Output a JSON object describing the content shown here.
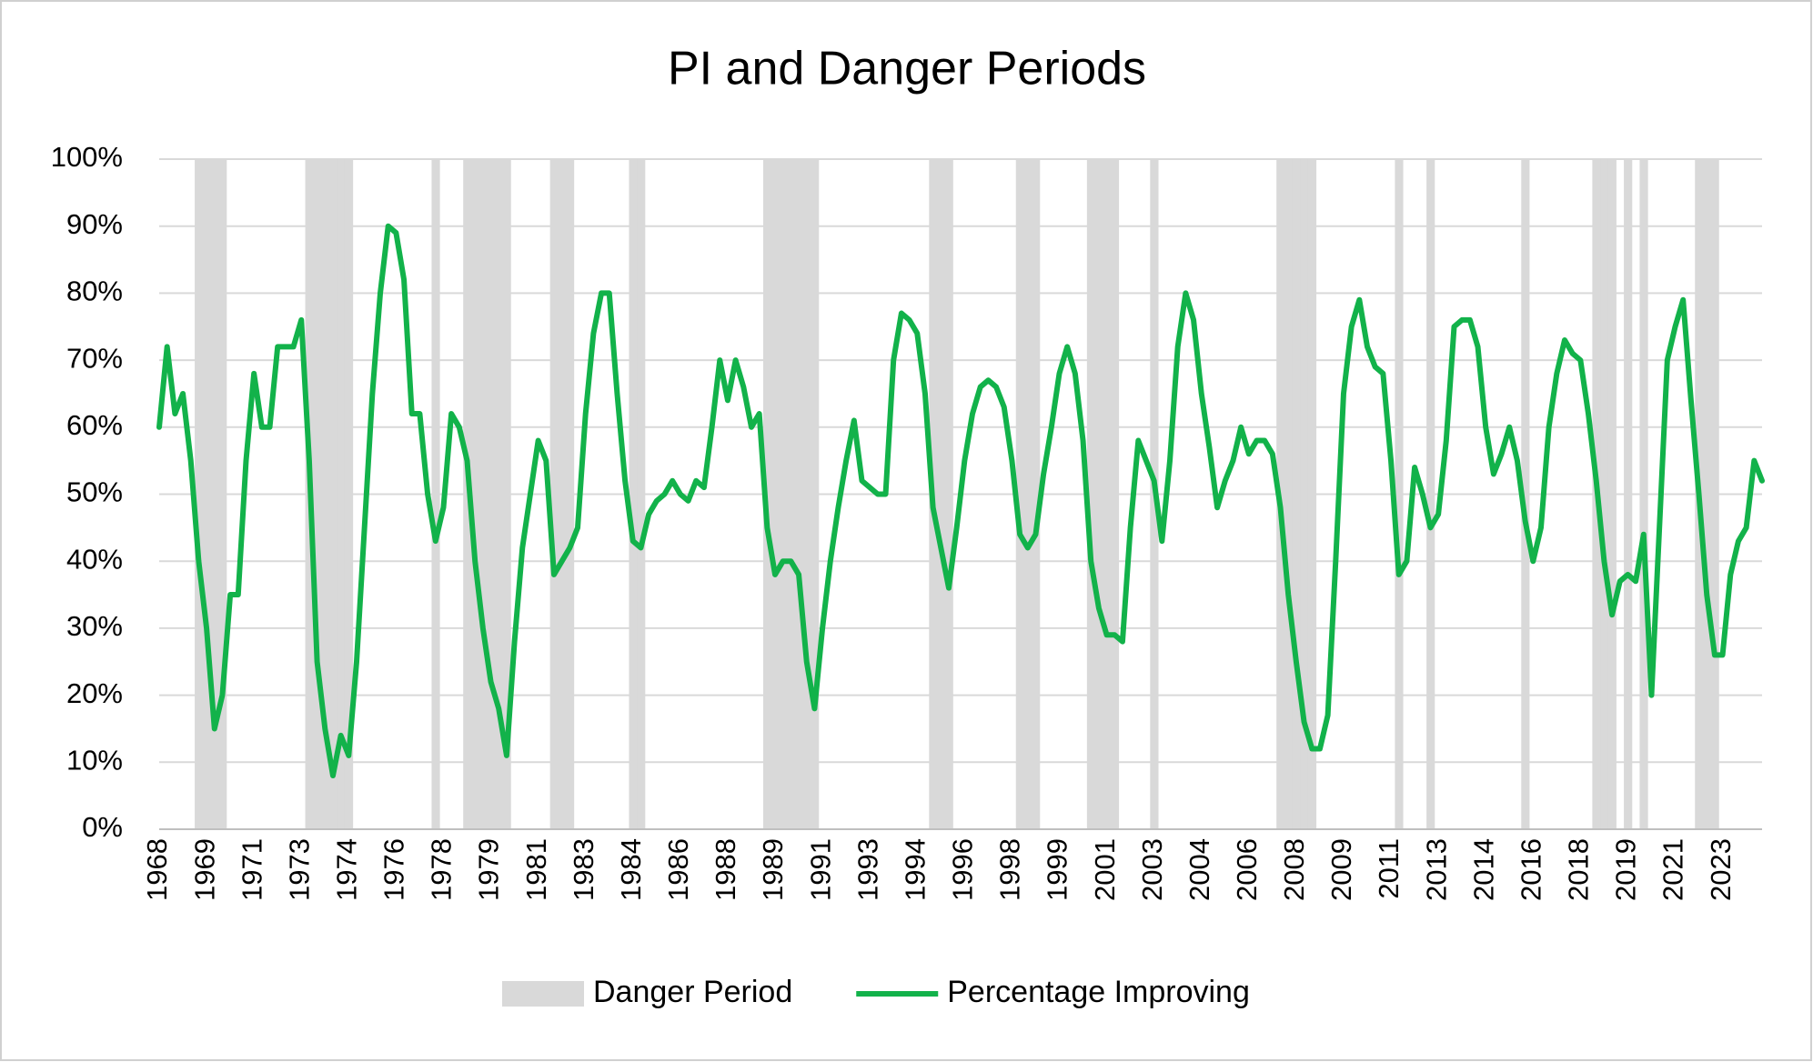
{
  "chart_data": {
    "type": "line",
    "title": "PI and Danger Periods",
    "categories": [
      "1968",
      null,
      null,
      null,
      null,
      null,
      "1969",
      null,
      null,
      null,
      null,
      null,
      "1971",
      null,
      null,
      null,
      null,
      null,
      "1973",
      null,
      null,
      null,
      null,
      null,
      "1974",
      null,
      null,
      null,
      null,
      null,
      "1976",
      null,
      null,
      null,
      null,
      null,
      "1978",
      null,
      null,
      null,
      null,
      null,
      "1979",
      null,
      null,
      null,
      null,
      null,
      "1981",
      null,
      null,
      null,
      null,
      null,
      "1983",
      null,
      null,
      null,
      null,
      null,
      "1984",
      null,
      null,
      null,
      null,
      null,
      "1986",
      null,
      null,
      null,
      null,
      null,
      "1988",
      null,
      null,
      null,
      null,
      null,
      "1989",
      null,
      null,
      null,
      null,
      null,
      "1991",
      null,
      null,
      null,
      null,
      null,
      "1993",
      null,
      null,
      null,
      null,
      null,
      "1994",
      null,
      null,
      null,
      null,
      null,
      "1996",
      null,
      null,
      null,
      null,
      null,
      "1998",
      null,
      null,
      null,
      null,
      null,
      "1999",
      null,
      null,
      null,
      null,
      null,
      "2001",
      null,
      null,
      null,
      null,
      null,
      "2003",
      null,
      null,
      null,
      null,
      null,
      "2004",
      null,
      null,
      null,
      null,
      null,
      "2006",
      null,
      null,
      null,
      null,
      null,
      "2008",
      null,
      null,
      null,
      null,
      null,
      "2009",
      null,
      null,
      null,
      null,
      null,
      "2011",
      null,
      null,
      null,
      null,
      null,
      "2013",
      null,
      null,
      null,
      null,
      null,
      "2014",
      null,
      null,
      null,
      null,
      null,
      "2016",
      null,
      null,
      null,
      null,
      null,
      "2018",
      null,
      null,
      null,
      null,
      null,
      "2019",
      null,
      null,
      null,
      null,
      null,
      "2021",
      null,
      null,
      null,
      null,
      null,
      "2023",
      null,
      null,
      null,
      null,
      null
    ],
    "series": [
      {
        "name": "Danger Period",
        "type": "bar",
        "color": "#d9d9d9",
        "values": [
          null,
          null,
          null,
          null,
          null,
          100,
          100,
          100,
          100,
          null,
          null,
          null,
          null,
          null,
          null,
          null,
          null,
          null,
          null,
          100,
          100,
          100,
          100,
          100,
          100,
          null,
          null,
          null,
          null,
          null,
          null,
          null,
          null,
          null,
          null,
          100,
          null,
          null,
          null,
          100,
          100,
          100,
          100,
          100,
          100,
          null,
          null,
          null,
          null,
          null,
          100,
          100,
          100,
          null,
          null,
          null,
          null,
          null,
          null,
          null,
          100,
          100,
          null,
          null,
          null,
          null,
          null,
          null,
          null,
          null,
          null,
          null,
          null,
          null,
          null,
          null,
          null,
          100,
          100,
          100,
          100,
          100,
          100,
          100,
          null,
          null,
          null,
          null,
          null,
          null,
          null,
          null,
          null,
          null,
          null,
          null,
          null,
          null,
          100,
          100,
          100,
          null,
          null,
          null,
          null,
          null,
          null,
          null,
          null,
          100,
          100,
          100,
          null,
          null,
          null,
          null,
          null,
          null,
          100,
          100,
          100,
          100,
          null,
          null,
          null,
          null,
          100,
          null,
          null,
          null,
          null,
          null,
          null,
          null,
          null,
          null,
          null,
          null,
          null,
          null,
          null,
          null,
          100,
          100,
          100,
          100,
          100,
          null,
          null,
          null,
          null,
          null,
          null,
          null,
          null,
          null,
          null,
          100,
          null,
          null,
          null,
          100,
          null,
          null,
          null,
          null,
          null,
          null,
          null,
          null,
          null,
          null,
          null,
          100,
          null,
          null,
          null,
          null,
          null,
          null,
          null,
          null,
          100,
          100,
          100,
          null,
          100,
          null,
          100,
          null,
          null,
          null,
          null,
          null,
          null,
          100,
          100,
          100,
          null,
          null,
          null,
          null,
          null,
          null
        ]
      },
      {
        "name": "Percentage Improving",
        "type": "line",
        "color": "#12b24a",
        "values": [
          60,
          72,
          62,
          65,
          55,
          40,
          30,
          15,
          20,
          35,
          35,
          55,
          68,
          60,
          60,
          72,
          72,
          72,
          76,
          55,
          25,
          15,
          8,
          14,
          11,
          25,
          45,
          65,
          80,
          90,
          89,
          82,
          62,
          62,
          50,
          43,
          48,
          62,
          60,
          55,
          40,
          30,
          22,
          18,
          11,
          28,
          42,
          50,
          58,
          55,
          38,
          40,
          42,
          45,
          62,
          74,
          80,
          80,
          65,
          52,
          43,
          42,
          47,
          49,
          50,
          52,
          50,
          49,
          52,
          51,
          60,
          70,
          64,
          70,
          66,
          60,
          62,
          45,
          38,
          40,
          40,
          38,
          25,
          18,
          30,
          40,
          48,
          55,
          61,
          52,
          51,
          50,
          50,
          70,
          77,
          76,
          74,
          65,
          48,
          42,
          36,
          45,
          55,
          62,
          66,
          67,
          66,
          63,
          55,
          44,
          42,
          44,
          53,
          60,
          68,
          72,
          68,
          58,
          40,
          33,
          29,
          29,
          28,
          45,
          58,
          55,
          52,
          43,
          55,
          72,
          80,
          76,
          65,
          57,
          48,
          52,
          55,
          60,
          56,
          58,
          58,
          56,
          48,
          35,
          25,
          16,
          12,
          12,
          17,
          40,
          65,
          75,
          79,
          72,
          69,
          68,
          55,
          38,
          40,
          54,
          50,
          45,
          47,
          58,
          75,
          76,
          76,
          72,
          60,
          53,
          56,
          60,
          55,
          46,
          40,
          45,
          60,
          68,
          73,
          71,
          70,
          62,
          52,
          40,
          32,
          37,
          38,
          37,
          44,
          20,
          45,
          70,
          75,
          79,
          64,
          50,
          35,
          26,
          26,
          38,
          43,
          45,
          55,
          52
        ]
      }
    ],
    "ylim": [
      0,
      100
    ],
    "yticks": [
      {
        "value": 0,
        "label": "0%"
      },
      {
        "value": 10,
        "label": "10%"
      },
      {
        "value": 20,
        "label": "20%"
      },
      {
        "value": 30,
        "label": "30%"
      },
      {
        "value": 40,
        "label": "40%"
      },
      {
        "value": 50,
        "label": "50%"
      },
      {
        "value": 60,
        "label": "60%"
      },
      {
        "value": 70,
        "label": "70%"
      },
      {
        "value": 80,
        "label": "80%"
      },
      {
        "value": 90,
        "label": "90%"
      },
      {
        "value": 100,
        "label": "100%"
      }
    ],
    "grid": true,
    "legend": "bottom"
  }
}
